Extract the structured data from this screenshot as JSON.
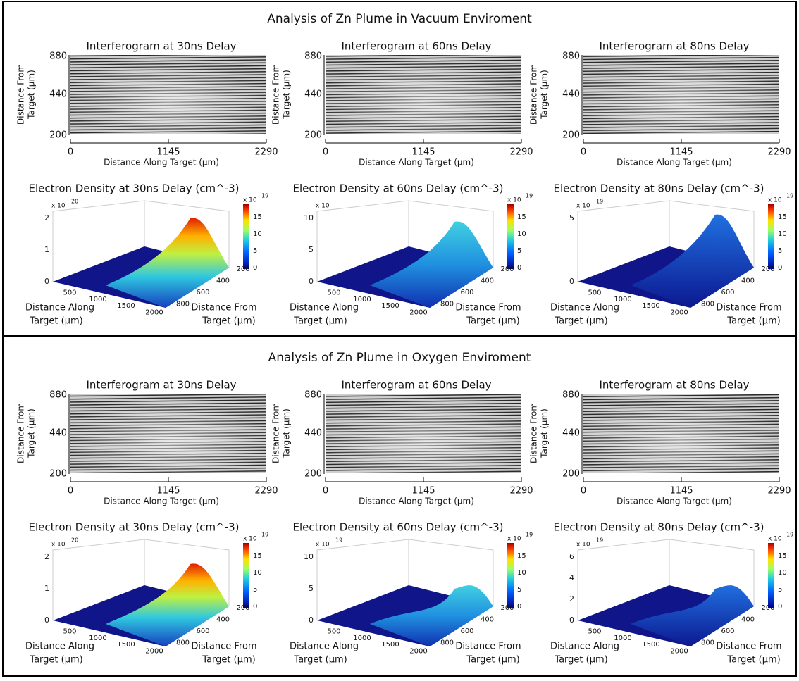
{
  "sections": [
    {
      "title": "Analysis of Zn Plume in Vacuum Enviroment",
      "interferograms": [
        {
          "title": "Interferogram at 30ns Delay"
        },
        {
          "title": "Interferogram at 60ns Delay"
        },
        {
          "title": "Interferogram at 80ns Delay"
        }
      ],
      "densities": [
        {
          "title": "Electron Density at 30ns Delay (cm^-3)",
          "z_scale": "x 10",
          "z_exp": "20",
          "z_ticks": [
            "0",
            "1",
            "2"
          ]
        },
        {
          "title": "Electron Density at 60ns Delay (cm^-3)",
          "z_scale": "x 10",
          "z_ticks": [
            "0",
            "5",
            "10"
          ]
        },
        {
          "title": "Electron Density at 80ns Delay (cm^-3)",
          "z_scale": "x 10",
          "z_exp": "19",
          "z_ticks": [
            "0",
            "5"
          ]
        }
      ]
    },
    {
      "title": "Analysis of Zn Plume in Oxygen Enviroment",
      "interferograms": [
        {
          "title": "Interferogram at 30ns Delay"
        },
        {
          "title": "Interferogram at 60ns Delay"
        },
        {
          "title": "Interferogram at 80ns Delay"
        }
      ],
      "densities": [
        {
          "title": "Electron Density at 30ns Delay (cm^-3)",
          "z_scale": "x 10",
          "z_exp": "20",
          "z_ticks": [
            "0",
            "1",
            "2"
          ]
        },
        {
          "title": "Electron Density at 60ns Delay (cm^-3)",
          "z_scale": "x 10",
          "z_exp": "19",
          "z_ticks": [
            "0",
            "5",
            "10"
          ]
        },
        {
          "title": "Electron Density at 80ns Delay (cm^-3)",
          "z_scale": "x 10",
          "z_exp": "19",
          "z_ticks": [
            "0",
            "2",
            "4",
            "6"
          ]
        }
      ]
    }
  ],
  "axes": {
    "interferogram": {
      "y_label_1": "Distance From",
      "y_label_2": "Target (µm)",
      "y_ticks": [
        "880",
        "440",
        "200"
      ],
      "x_label": "Distance Along Target (µm)",
      "x_ticks": [
        "0",
        "1145",
        "2290"
      ]
    },
    "density": {
      "x_label_1": "Distance Along",
      "x_label_2": "Target (µm)",
      "x_ticks": [
        "500",
        "1000",
        "1500",
        "2000"
      ],
      "y_label_1": "Distance From",
      "y_label_2": "Target (µm)",
      "y_ticks": [
        "800",
        "600",
        "400",
        "200"
      ],
      "colorbar_scale": "x 10",
      "colorbar_exp": "19",
      "colorbar_ticks": [
        "0",
        "5",
        "10",
        "15"
      ]
    }
  }
}
